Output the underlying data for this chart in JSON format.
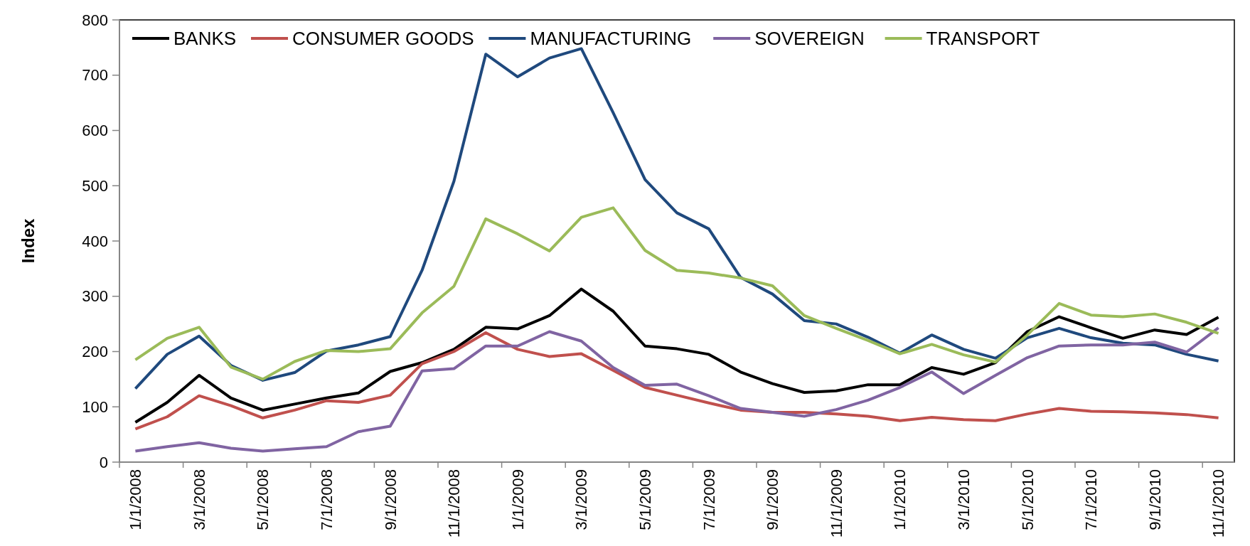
{
  "chart_data": {
    "type": "line",
    "ylabel": "Index",
    "categories": [
      "1/1/2008",
      null,
      "3/1/2008",
      null,
      "5/1/2008",
      null,
      "7/1/2008",
      null,
      "9/1/2008",
      null,
      "11/1/2008",
      null,
      "1/1/2009",
      null,
      "3/1/2009",
      null,
      "5/1/2009",
      null,
      "7/1/2009",
      null,
      "9/1/2009",
      null,
      "11/1/2009",
      null,
      "1/1/2010",
      null,
      "3/1/2010",
      null,
      "5/1/2010",
      null,
      "7/1/2010",
      null,
      "9/1/2010",
      null,
      "11/1/2010"
    ],
    "ylim": [
      0,
      800
    ],
    "yticks": [
      0,
      100,
      200,
      300,
      400,
      500,
      600,
      700,
      800
    ],
    "grid": false,
    "legend": "top",
    "line_style": "solid",
    "series": [
      {
        "name": "BANKS",
        "color": "#000000",
        "values": [
          72,
          108,
          157,
          116,
          94,
          105,
          116,
          125,
          164,
          180,
          204,
          244,
          241,
          265,
          313,
          273,
          210,
          205,
          195,
          163,
          142,
          126,
          129,
          140,
          140,
          171,
          159,
          180,
          236,
          263,
          243,
          224,
          239,
          231,
          262
        ]
      },
      {
        "name": "CONSUMER GOODS",
        "color": "#c0504d",
        "values": [
          60,
          82,
          120,
          102,
          80,
          94,
          111,
          108,
          121,
          178,
          200,
          234,
          204,
          191,
          196,
          166,
          135,
          121,
          107,
          94,
          90,
          90,
          87,
          83,
          75,
          81,
          77,
          75,
          87,
          97,
          92,
          91,
          89,
          86,
          80
        ]
      },
      {
        "name": "MANUFACTURING",
        "color": "#1f497d",
        "values": [
          133,
          195,
          228,
          175,
          148,
          162,
          201,
          212,
          227,
          347,
          508,
          738,
          697,
          731,
          748,
          632,
          511,
          451,
          422,
          334,
          304,
          256,
          250,
          226,
          197,
          230,
          204,
          188,
          225,
          242,
          225,
          215,
          212,
          195,
          183
        ]
      },
      {
        "name": "SOVEREIGN",
        "color": "#8064a2",
        "values": [
          20,
          28,
          35,
          25,
          20,
          24,
          28,
          55,
          65,
          165,
          169,
          210,
          210,
          236,
          219,
          171,
          139,
          141,
          120,
          97,
          90,
          83,
          95,
          112,
          135,
          163,
          124,
          157,
          189,
          210,
          212,
          212,
          217,
          199,
          243
        ]
      },
      {
        "name": "TRANSPORT",
        "color": "#9bbb59",
        "values": [
          185,
          224,
          244,
          172,
          150,
          182,
          202,
          200,
          205,
          270,
          318,
          440,
          413,
          382,
          443,
          460,
          383,
          347,
          342,
          333,
          319,
          265,
          242,
          220,
          196,
          213,
          194,
          181,
          230,
          287,
          266,
          263,
          268,
          253,
          233
        ]
      }
    ]
  }
}
